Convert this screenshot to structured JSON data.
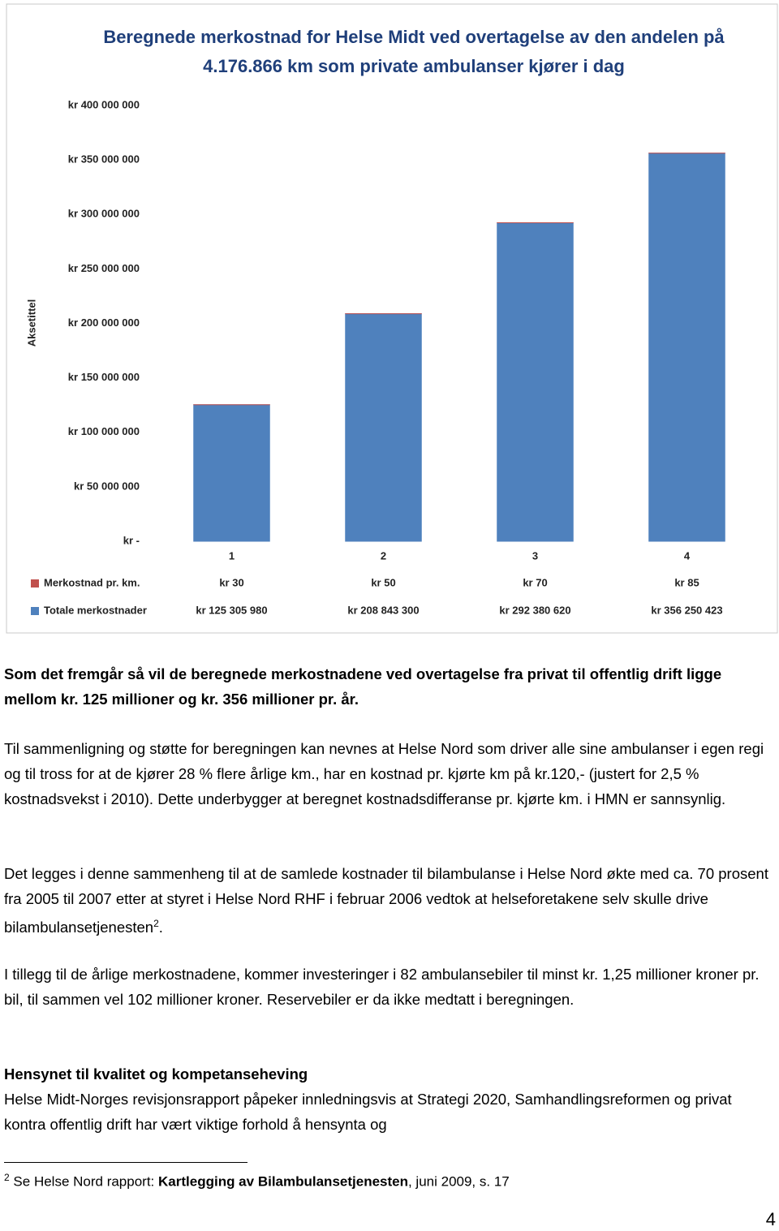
{
  "chart_data": {
    "type": "bar",
    "stacked": true,
    "title": "Beregnede merkostnad for Helse Midt ved overtagelse av den andelen på 4.176.866 km som private ambulanser kjører i dag",
    "y_label": "Aksetittel",
    "categories": [
      "1",
      "2",
      "3",
      "4"
    ],
    "series": [
      {
        "name": "Merkostnad pr. km.",
        "color": "#c0504d",
        "values": [
          30,
          50,
          70,
          85
        ],
        "value_labels": [
          "kr 30",
          "kr 50",
          "kr 70",
          "kr 85"
        ]
      },
      {
        "name": "Totale merkostnader",
        "color": "#4f81bd",
        "values": [
          125305980,
          208843300,
          292380620,
          356250423
        ],
        "value_labels": [
          "kr 125 305 980",
          "kr 208 843 300",
          "kr 292 380 620",
          "kr 356 250 423"
        ]
      }
    ],
    "ylim": [
      0,
      400000000
    ],
    "yticks": [
      {
        "value": 0,
        "label": "kr -"
      },
      {
        "value": 50000000,
        "label": "kr 50 000 000"
      },
      {
        "value": 100000000,
        "label": "kr 100 000 000"
      },
      {
        "value": 150000000,
        "label": "kr 150 000 000"
      },
      {
        "value": 200000000,
        "label": "kr 200 000 000"
      },
      {
        "value": 250000000,
        "label": "kr 250 000 000"
      },
      {
        "value": 300000000,
        "label": "kr 300 000 000"
      },
      {
        "value": 350000000,
        "label": "kr 350 000 000"
      },
      {
        "value": 400000000,
        "label": "kr 400 000 000"
      }
    ],
    "grid": false
  },
  "text": {
    "summary": "Som det fremgår så vil de beregnede merkostnadene ved overtagelse fra privat til offentlig drift ligge mellom kr. 125 millioner og kr. 356 millioner pr. år.",
    "comparison": "Til sammenligning og støtte for beregningen kan nevnes at Helse Nord som driver alle sine ambulanser i egen regi og til tross for at de kjører 28 % flere årlige km., har en kostnad pr. kjørte km på kr.120,- (justert for 2,5 % kostnadsvekst i 2010). Dette underbygger at beregnet kostnadsdifferanse pr. kjørte km. i HMN er sannsynlig.",
    "history": {
      "text": "Det legges i denne sammenheng til at de samlede kostnader til bilambulanse i Helse Nord økte med ca. 70 prosent fra 2005 til 2007 etter at styret i Helse Nord RHF i februar 2006 vedtok at helseforetakene selv skulle drive bilambulansetjenesten",
      "ref": "2",
      "end": "."
    },
    "investment": "I tillegg til de årlige merkostnadene, kommer investeringer i 82 ambulansebiler til minst kr. 1,25 millioner kroner pr. bil, til sammen vel 102 millioner kroner. Reservebiler er da ikke medtatt i beregningen.",
    "heading": "Hensynet til kvalitet og kompetanseheving",
    "body": "Helse Midt-Norges revisjonsrapport påpeker innledningsvis at Strategi 2020, Samhandlingsreformen og privat kontra offentlig drift har vært viktige forhold å hensynta og",
    "footnote": {
      "ref": "2",
      "pre": "Se Helse Nord rapport: ",
      "title": "Kartlegging av Bilambulansetjenesten",
      "post": ", juni 2009, s. 17"
    },
    "page_number": "4"
  }
}
